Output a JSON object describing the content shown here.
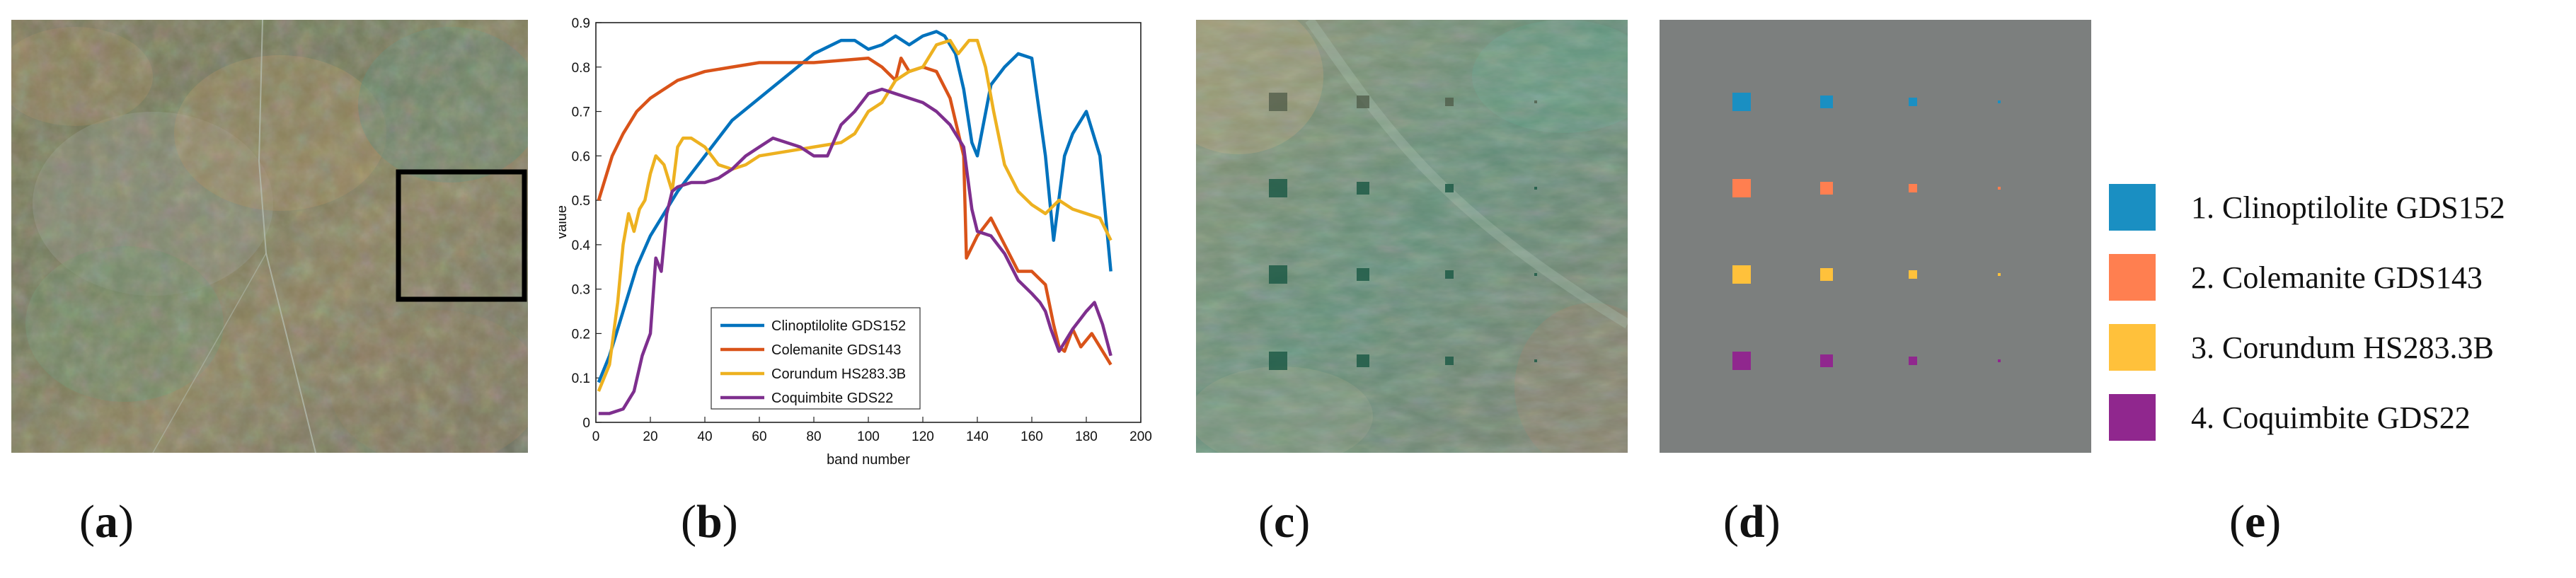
{
  "captions": {
    "a": "a",
    "b": "b",
    "c": "c",
    "d": "d",
    "e": "e"
  },
  "panel_a": {
    "image": "satellite-scene",
    "selection_box": "region-of-interest"
  },
  "panel_c": {
    "image": "zoomed-region-with-targets"
  },
  "panel_d": {
    "image": "ground-truth-target-map"
  },
  "materials": [
    {
      "label": "1. Clinoptilolite GDS152",
      "color": "#1a8fc2"
    },
    {
      "label": "2. Colemanite GDS143",
      "color": "#ff7f50"
    },
    {
      "label": "3. Corundum HS283.3B",
      "color": "#ffc13b"
    },
    {
      "label": "4. Coquimbite GDS22",
      "color": "#90278e"
    }
  ],
  "chart_data": {
    "type": "line",
    "title": "",
    "xlabel": "band number",
    "ylabel": "value",
    "xlim": [
      0,
      200
    ],
    "ylim": [
      0,
      0.9
    ],
    "xticks": [
      0,
      20,
      40,
      60,
      80,
      100,
      120,
      140,
      160,
      180,
      200
    ],
    "yticks": [
      0,
      0.1,
      0.2,
      0.3,
      0.4,
      0.5,
      0.6,
      0.7,
      0.8,
      0.9
    ],
    "legend_position": "lower-center",
    "series": [
      {
        "name": "Clinoptilolite GDS152",
        "color": "#0072bd",
        "x": [
          1,
          5,
          10,
          15,
          20,
          25,
          30,
          40,
          50,
          60,
          70,
          80,
          90,
          95,
          100,
          105,
          110,
          115,
          120,
          125,
          128,
          132,
          135,
          138,
          140,
          145,
          150,
          155,
          160,
          165,
          168,
          172,
          175,
          180,
          185,
          189
        ],
        "y": [
          0.09,
          0.15,
          0.25,
          0.35,
          0.42,
          0.47,
          0.52,
          0.6,
          0.68,
          0.73,
          0.78,
          0.83,
          0.86,
          0.86,
          0.84,
          0.85,
          0.87,
          0.85,
          0.87,
          0.88,
          0.87,
          0.83,
          0.75,
          0.63,
          0.6,
          0.76,
          0.8,
          0.83,
          0.82,
          0.6,
          0.41,
          0.6,
          0.65,
          0.7,
          0.6,
          0.34
        ]
      },
      {
        "name": "Colemanite GDS143",
        "color": "#d95319",
        "x": [
          1,
          3,
          6,
          10,
          15,
          20,
          25,
          30,
          40,
          50,
          60,
          70,
          80,
          90,
          100,
          105,
          110,
          112,
          115,
          120,
          125,
          130,
          135,
          136,
          140,
          145,
          150,
          155,
          160,
          165,
          168,
          170,
          172,
          175,
          178,
          182,
          186,
          189
        ],
        "y": [
          0.5,
          0.54,
          0.6,
          0.65,
          0.7,
          0.73,
          0.75,
          0.77,
          0.79,
          0.8,
          0.81,
          0.81,
          0.81,
          0.815,
          0.82,
          0.8,
          0.77,
          0.82,
          0.79,
          0.8,
          0.79,
          0.73,
          0.6,
          0.37,
          0.42,
          0.46,
          0.4,
          0.34,
          0.34,
          0.31,
          0.22,
          0.17,
          0.16,
          0.21,
          0.17,
          0.2,
          0.16,
          0.13
        ]
      },
      {
        "name": "Corundum HS283.3B",
        "color": "#edb120",
        "x": [
          1,
          5,
          8,
          10,
          12,
          14,
          16,
          18,
          20,
          22,
          25,
          28,
          30,
          32,
          35,
          40,
          45,
          50,
          55,
          60,
          70,
          80,
          90,
          95,
          100,
          105,
          110,
          115,
          120,
          125,
          130,
          133,
          137,
          140,
          143,
          146,
          150,
          155,
          160,
          165,
          170,
          175,
          180,
          185,
          189
        ],
        "y": [
          0.07,
          0.13,
          0.27,
          0.4,
          0.47,
          0.43,
          0.48,
          0.5,
          0.56,
          0.6,
          0.58,
          0.52,
          0.62,
          0.64,
          0.64,
          0.62,
          0.58,
          0.57,
          0.58,
          0.6,
          0.61,
          0.62,
          0.63,
          0.65,
          0.7,
          0.72,
          0.77,
          0.79,
          0.8,
          0.85,
          0.86,
          0.83,
          0.86,
          0.86,
          0.8,
          0.7,
          0.58,
          0.52,
          0.49,
          0.47,
          0.5,
          0.48,
          0.47,
          0.46,
          0.41
        ]
      },
      {
        "name": "Coquimbite GDS22",
        "color": "#7e2f8e",
        "x": [
          1,
          5,
          10,
          14,
          17,
          20,
          22,
          24,
          26,
          28,
          30,
          35,
          40,
          45,
          50,
          55,
          60,
          65,
          70,
          75,
          80,
          85,
          90,
          95,
          100,
          105,
          110,
          115,
          120,
          125,
          130,
          135,
          138,
          140,
          145,
          150,
          155,
          160,
          163,
          165,
          167,
          170,
          175,
          180,
          183,
          186,
          189
        ],
        "y": [
          0.02,
          0.02,
          0.03,
          0.07,
          0.15,
          0.2,
          0.37,
          0.34,
          0.47,
          0.52,
          0.53,
          0.54,
          0.54,
          0.55,
          0.57,
          0.6,
          0.62,
          0.64,
          0.63,
          0.62,
          0.6,
          0.6,
          0.67,
          0.7,
          0.74,
          0.75,
          0.74,
          0.73,
          0.72,
          0.7,
          0.67,
          0.62,
          0.48,
          0.43,
          0.42,
          0.38,
          0.32,
          0.29,
          0.27,
          0.25,
          0.21,
          0.16,
          0.21,
          0.25,
          0.27,
          0.22,
          0.15
        ]
      }
    ]
  }
}
